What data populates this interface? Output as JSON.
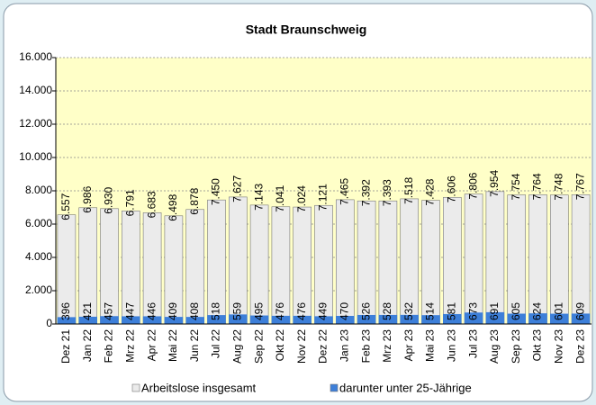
{
  "chart_data": {
    "type": "bar",
    "title": "Stadt Braunschweig",
    "categories": [
      "Dez 21",
      "Jan 22",
      "Feb 22",
      "Mrz 22",
      "Apr 22",
      "Mai 22",
      "Jun 22",
      "Jul 22",
      "Aug 22",
      "Sep 22",
      "Okt 22",
      "Nov 22",
      "Dez 22",
      "Jan 23",
      "Feb 23",
      "Mrz 23",
      "Apr 23",
      "Mai 23",
      "Jun 23",
      "Jul 23",
      "Aug 23",
      "Sep 23",
      "Okt 23",
      "Nov 23",
      "Dez 23"
    ],
    "series": [
      {
        "name": "Arbeitslose insgesamt",
        "color": "#ebebeb",
        "values": [
          6557,
          6986,
          6930,
          6791,
          6683,
          6498,
          6878,
          7450,
          7627,
          7143,
          7041,
          7024,
          7121,
          7465,
          7392,
          7393,
          7518,
          7428,
          7606,
          7806,
          7954,
          7754,
          7764,
          7748,
          7767
        ],
        "value_labels": [
          "6.557",
          "6.986",
          "6.930",
          "6.791",
          "6.683",
          "6.498",
          "6.878",
          "7.450",
          "7.627",
          "7.143",
          "7.041",
          "7.024",
          "7.121",
          "7.465",
          "7.392",
          "7.393",
          "7.518",
          "7.428",
          "7.606",
          "7.806",
          "7.954",
          "7.754",
          "7.764",
          "7.748",
          "7.767"
        ]
      },
      {
        "name": "darunter unter 25-Jährige",
        "color": "#3d7fd9",
        "values": [
          396,
          421,
          457,
          447,
          446,
          409,
          408,
          518,
          559,
          495,
          476,
          476,
          449,
          470,
          526,
          528,
          532,
          514,
          581,
          673,
          691,
          605,
          624,
          601,
          609
        ]
      }
    ],
    "ylim": [
      0,
      16000
    ],
    "yticks": [
      0,
      {
        "value": 2000,
        "label": "2.000"
      },
      {
        "value": 4000,
        "label": "4.000"
      },
      {
        "value": 6000,
        "label": "6.000"
      },
      {
        "value": 8000,
        "label": "8.000"
      },
      {
        "value": 10000,
        "label": "10.000"
      },
      {
        "value": 12000,
        "label": "12.000"
      },
      {
        "value": 14000,
        "label": "14.000"
      },
      {
        "value": 16000,
        "label": "16.000"
      }
    ],
    "grid": true
  }
}
